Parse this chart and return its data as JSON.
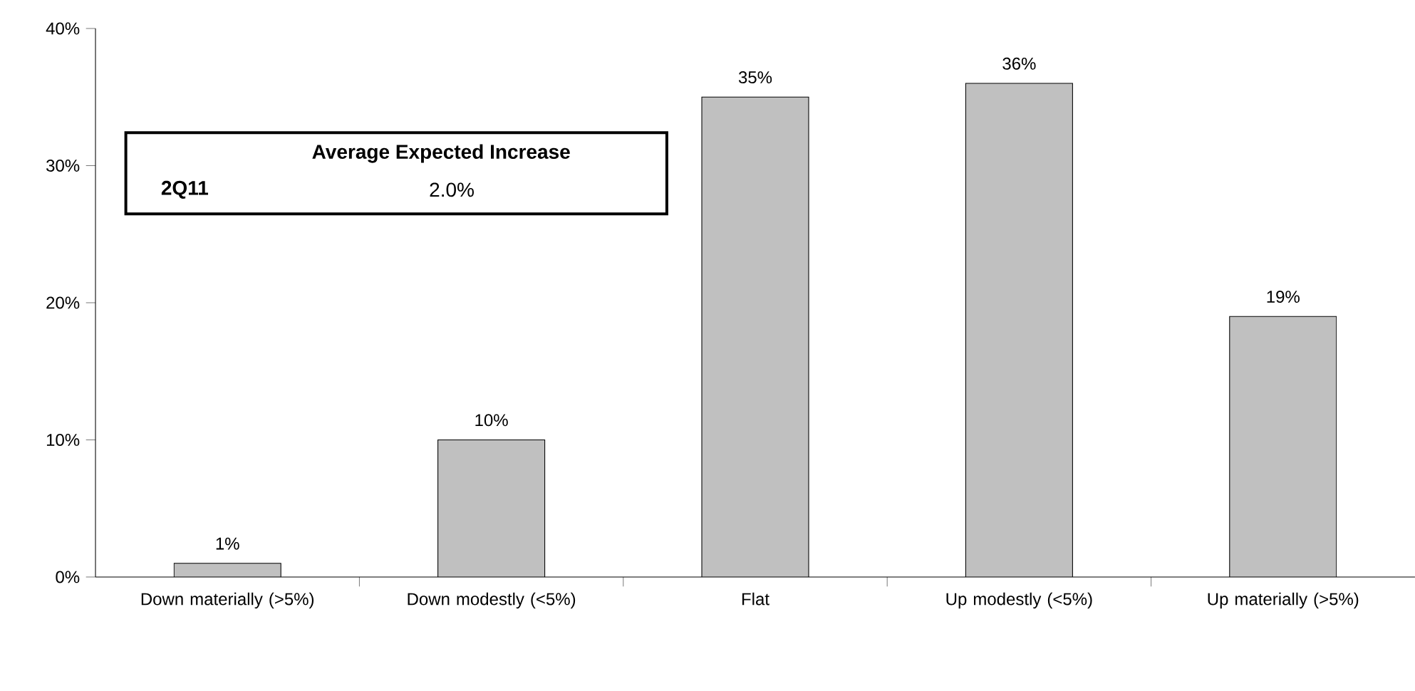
{
  "chart_data": {
    "type": "bar",
    "categories": [
      "Down materially (>5%)",
      "Down modestly (<5%)",
      "Flat",
      "Up modestly (<5%)",
      "Up materially (>5%)"
    ],
    "values": [
      1,
      10,
      35,
      36,
      19
    ],
    "value_labels": [
      "1%",
      "10%",
      "35%",
      "36%",
      "19%"
    ],
    "color": "#c0c0c0",
    "ylim": [
      0,
      40
    ],
    "yticks": [
      {
        "value": 0,
        "label": "0%"
      },
      {
        "value": 10,
        "label": "10%"
      },
      {
        "value": 20,
        "label": "20%"
      },
      {
        "value": 30,
        "label": "30%"
      },
      {
        "value": 40,
        "label": "40%"
      }
    ],
    "grid": false,
    "annotations": [
      "Average Expected Increase",
      "2Q11",
      "2.0%"
    ]
  }
}
